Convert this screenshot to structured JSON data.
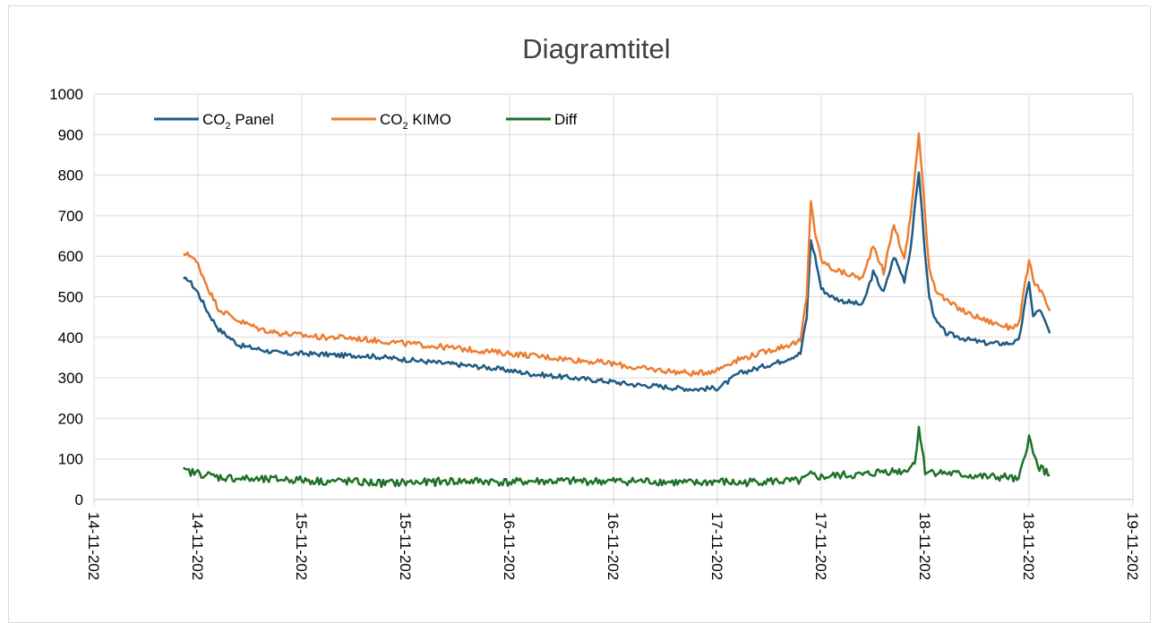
{
  "chart_data": {
    "type": "line",
    "title": "Diagramtitel",
    "xlabel": "",
    "ylabel": "",
    "ylim": [
      0,
      1000
    ],
    "yticks": [
      0,
      100,
      200,
      300,
      400,
      500,
      600,
      700,
      800,
      900,
      1000
    ],
    "x_tick_labels": [
      "14-11-202",
      "14-11-202",
      "15-11-202",
      "15-11-202",
      "16-11-202",
      "16-11-202",
      "17-11-202",
      "17-11-202",
      "18-11-202",
      "18-11-202",
      "19-11-202"
    ],
    "x_axis_unit": "days from first x tick (14-11, 00:00); ticks every 0.5 day",
    "xlim": [
      0,
      5
    ],
    "grid": "vertical and horizontal",
    "legend_position": "top-left",
    "series": [
      {
        "name": "CO2 Panel",
        "legend_label": "CO",
        "legend_sub": "2",
        "legend_suffix": " Panel",
        "color": "#1f5b82",
        "x": [
          0.43,
          0.45,
          0.5,
          0.55,
          0.6,
          0.7,
          0.8,
          0.9,
          1.0,
          1.1,
          1.2,
          1.3,
          1.4,
          1.5,
          1.6,
          1.7,
          1.8,
          1.9,
          2.0,
          2.1,
          2.2,
          2.3,
          2.4,
          2.5,
          2.6,
          2.7,
          2.8,
          2.9,
          3.0,
          3.05,
          3.1,
          3.2,
          3.3,
          3.4,
          3.43,
          3.45,
          3.47,
          3.5,
          3.55,
          3.6,
          3.7,
          3.75,
          3.8,
          3.85,
          3.9,
          3.93,
          3.97,
          4.0,
          4.02,
          4.05,
          4.1,
          4.2,
          4.3,
          4.4,
          4.45,
          4.5,
          4.52,
          4.55,
          4.6
        ],
        "y": [
          540,
          545,
          510,
          460,
          420,
          380,
          370,
          360,
          360,
          358,
          355,
          355,
          350,
          345,
          340,
          335,
          330,
          325,
          318,
          310,
          305,
          300,
          295,
          290,
          283,
          280,
          275,
          272,
          275,
          290,
          310,
          325,
          340,
          360,
          450,
          640,
          600,
          520,
          500,
          490,
          480,
          560,
          510,
          600,
          540,
          620,
          810,
          600,
          500,
          440,
          410,
          395,
          385,
          385,
          390,
          540,
          450,
          470,
          410
        ]
      },
      {
        "name": "CO2 KIMO",
        "legend_label": "CO",
        "legend_sub": "2",
        "legend_suffix": " KIMO",
        "color": "#ed7d31",
        "x": [
          0.43,
          0.45,
          0.5,
          0.55,
          0.6,
          0.7,
          0.8,
          0.9,
          1.0,
          1.1,
          1.2,
          1.3,
          1.4,
          1.5,
          1.6,
          1.7,
          1.8,
          1.9,
          2.0,
          2.1,
          2.2,
          2.3,
          2.4,
          2.5,
          2.6,
          2.7,
          2.8,
          2.9,
          3.0,
          3.05,
          3.1,
          3.2,
          3.3,
          3.4,
          3.43,
          3.45,
          3.47,
          3.5,
          3.55,
          3.6,
          3.7,
          3.75,
          3.8,
          3.85,
          3.9,
          3.93,
          3.97,
          4.0,
          4.02,
          4.05,
          4.1,
          4.2,
          4.3,
          4.4,
          4.45,
          4.5,
          4.52,
          4.55,
          4.6
        ],
        "y": [
          600,
          610,
          580,
          520,
          470,
          440,
          420,
          410,
          405,
          400,
          400,
          395,
          390,
          385,
          380,
          375,
          370,
          365,
          360,
          355,
          350,
          345,
          340,
          335,
          325,
          320,
          315,
          310,
          320,
          335,
          345,
          360,
          375,
          390,
          500,
          740,
          660,
          590,
          570,
          560,
          545,
          630,
          560,
          680,
          590,
          700,
          900,
          700,
          570,
          520,
          490,
          460,
          440,
          425,
          430,
          590,
          540,
          520,
          465
        ]
      },
      {
        "name": "Diff",
        "legend_label": "Diff",
        "legend_sub": "",
        "legend_suffix": "",
        "color": "#1e7128",
        "x": [
          0.43,
          0.5,
          0.6,
          0.7,
          0.8,
          0.9,
          1.0,
          1.1,
          1.2,
          1.3,
          1.4,
          1.5,
          1.6,
          1.7,
          1.8,
          1.9,
          2.0,
          2.1,
          2.2,
          2.3,
          2.4,
          2.5,
          2.6,
          2.7,
          2.8,
          2.9,
          3.0,
          3.1,
          3.2,
          3.3,
          3.4,
          3.45,
          3.5,
          3.6,
          3.7,
          3.8,
          3.9,
          3.95,
          3.97,
          4.0,
          4.1,
          4.2,
          4.3,
          4.4,
          4.45,
          4.5,
          4.52,
          4.55,
          4.6
        ],
        "y": [
          70,
          65,
          55,
          52,
          48,
          50,
          48,
          45,
          45,
          42,
          40,
          42,
          42,
          45,
          45,
          45,
          42,
          45,
          45,
          45,
          45,
          45,
          45,
          45,
          42,
          40,
          45,
          40,
          45,
          45,
          45,
          60,
          55,
          60,
          60,
          70,
          70,
          90,
          180,
          70,
          65,
          60,
          55,
          55,
          45,
          155,
          110,
          80,
          60
        ]
      }
    ]
  }
}
